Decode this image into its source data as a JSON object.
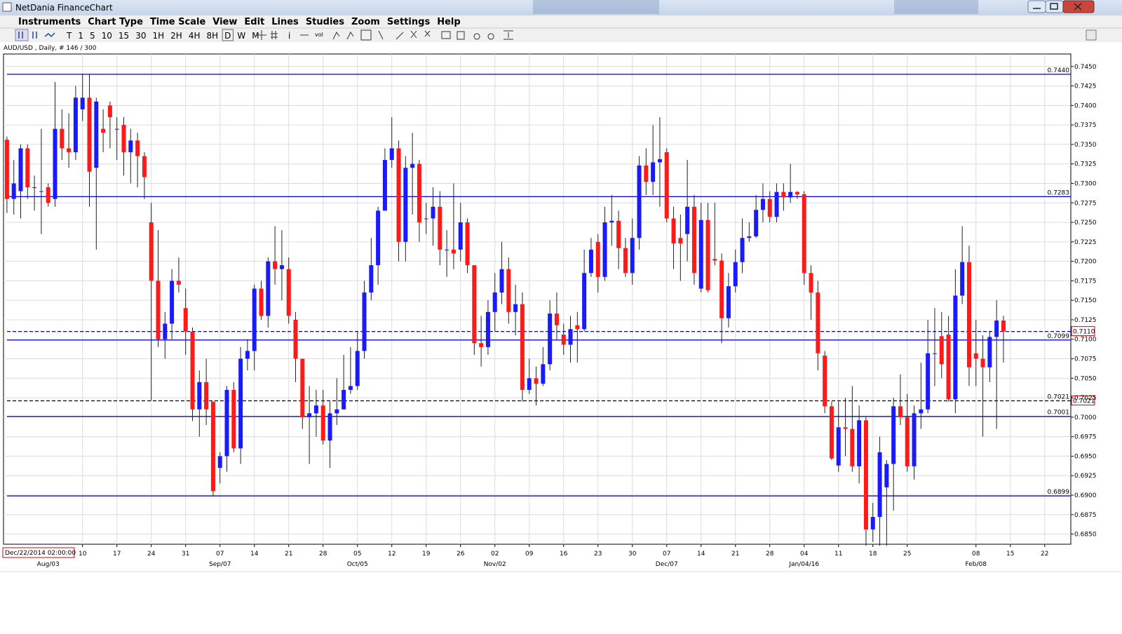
{
  "window": {
    "title": "NetDania FinanceChart"
  },
  "menu": [
    "Instruments",
    "Chart Type",
    "Time Scale",
    "View",
    "Edit",
    "Lines",
    "Studies",
    "Zoom",
    "Settings",
    "Help"
  ],
  "toolbar": {
    "timeframes": [
      "T",
      "1",
      "5",
      "10",
      "15",
      "30",
      "1H",
      "2H",
      "4H",
      "8H",
      "D",
      "W",
      "M"
    ],
    "tools": [
      "i",
      "vol"
    ]
  },
  "chart_data": {
    "type": "candlestick",
    "title": "AUD/USD , Daily, # 146 / 300",
    "start_label": "Dec/22/2014 02:00:00",
    "up_color": "#1a1aff",
    "down_color": "#ff1a1a",
    "wick_color": "#222222",
    "grid": true,
    "xlim": [
      -0.5,
      154.8
    ],
    "ylim": [
      0.6837,
      0.7466
    ],
    "yticks": [
      {
        "value": 0.745,
        "label": "0.7450"
      },
      {
        "value": 0.7425,
        "label": "0.7425"
      },
      {
        "value": 0.74,
        "label": "0.7400"
      },
      {
        "value": 0.7375,
        "label": "0.7375"
      },
      {
        "value": 0.735,
        "label": "0.7350"
      },
      {
        "value": 0.7325,
        "label": "0.7325"
      },
      {
        "value": 0.73,
        "label": "0.7300"
      },
      {
        "value": 0.7275,
        "label": "0.7275"
      },
      {
        "value": 0.725,
        "label": "0.7250"
      },
      {
        "value": 0.7225,
        "label": "0.7225"
      },
      {
        "value": 0.72,
        "label": "0.7200"
      },
      {
        "value": 0.7175,
        "label": "0.7175"
      },
      {
        "value": 0.715,
        "label": "0.7150"
      },
      {
        "value": 0.7125,
        "label": "0.7125"
      },
      {
        "value": 0.71,
        "label": "0.7100"
      },
      {
        "value": 0.7075,
        "label": "0.7075"
      },
      {
        "value": 0.705,
        "label": "0.7050"
      },
      {
        "value": 0.7025,
        "label": "0.7025"
      },
      {
        "value": 0.7,
        "label": "0.7000"
      },
      {
        "value": 0.6975,
        "label": "0.6975"
      },
      {
        "value": 0.695,
        "label": "0.6950"
      },
      {
        "value": 0.6925,
        "label": "0.6925"
      },
      {
        "value": 0.69,
        "label": "0.6900"
      },
      {
        "value": 0.6875,
        "label": "0.6875"
      },
      {
        "value": 0.685,
        "label": "0.6850"
      }
    ],
    "xticks": [
      {
        "value": 11,
        "label": "10"
      },
      {
        "value": 16,
        "label": "17"
      },
      {
        "value": 21,
        "label": "24"
      },
      {
        "value": 26,
        "label": "31"
      },
      {
        "value": 31,
        "label": "07"
      },
      {
        "value": 36,
        "label": "14"
      },
      {
        "value": 41,
        "label": "21"
      },
      {
        "value": 46,
        "label": "28"
      },
      {
        "value": 51,
        "label": "05"
      },
      {
        "value": 56,
        "label": "12"
      },
      {
        "value": 61,
        "label": "19"
      },
      {
        "value": 66,
        "label": "26"
      },
      {
        "value": 71,
        "label": "02"
      },
      {
        "value": 76,
        "label": "09"
      },
      {
        "value": 81,
        "label": "16"
      },
      {
        "value": 86,
        "label": "23"
      },
      {
        "value": 91,
        "label": "30"
      },
      {
        "value": 96,
        "label": "07"
      },
      {
        "value": 101,
        "label": "14"
      },
      {
        "value": 106,
        "label": "21"
      },
      {
        "value": 111,
        "label": "28"
      },
      {
        "value": 116,
        "label": "04"
      },
      {
        "value": 121,
        "label": "11"
      },
      {
        "value": 126,
        "label": "18"
      },
      {
        "value": 131,
        "label": "25"
      },
      {
        "value": 141,
        "label": "08"
      },
      {
        "value": 146,
        "label": "15"
      },
      {
        "value": 151,
        "label": "22"
      }
    ],
    "month_ticks": [
      {
        "value": 6,
        "label": "Aug/03"
      },
      {
        "value": 31,
        "label": "Sep/07"
      },
      {
        "value": 51,
        "label": "Oct/05"
      },
      {
        "value": 71,
        "label": "Nov/02"
      },
      {
        "value": 96,
        "label": "Dec/07"
      },
      {
        "value": 116,
        "label": "Jan/04/16"
      },
      {
        "value": 141,
        "label": "Feb/08"
      }
    ],
    "levels": [
      {
        "value": 0.744,
        "label": "0.7440",
        "color": "#0000cc",
        "dashed": false,
        "boxed": false
      },
      {
        "value": 0.7283,
        "label": "0.7283",
        "color": "#0000cc",
        "dashed": false,
        "boxed": false
      },
      {
        "value": 0.7099,
        "label": "0.7099",
        "color": "#0000cc",
        "dashed": false,
        "boxed": false
      },
      {
        "value": 0.7001,
        "label": "0.7001",
        "color": "#0000cc",
        "dashed": false,
        "boxed": false
      },
      {
        "value": 0.6899,
        "label": "0.6899",
        "color": "#0000cc",
        "dashed": false,
        "boxed": false
      },
      {
        "value": 0.711,
        "label": "0.7110",
        "color": "#0000ff",
        "dashed": true,
        "boxed": true
      },
      {
        "value": 0.7021,
        "label": "0.7021",
        "color": "#000000",
        "dashed": true,
        "boxed": true
      }
    ],
    "candles": [
      [
        0.7356,
        0.736,
        0.7262,
        0.728
      ],
      [
        0.728,
        0.733,
        0.726,
        0.73
      ],
      [
        0.729,
        0.735,
        0.7255,
        0.7345
      ],
      [
        0.7345,
        0.735,
        0.728,
        0.7295
      ],
      [
        0.7295,
        0.731,
        0.7265,
        0.7295
      ],
      [
        0.729,
        0.737,
        0.7235,
        0.729
      ],
      [
        0.7295,
        0.73,
        0.727,
        0.7275
      ],
      [
        0.728,
        0.743,
        0.727,
        0.737
      ],
      [
        0.737,
        0.7395,
        0.733,
        0.7345
      ],
      [
        0.7345,
        0.739,
        0.732,
        0.734
      ],
      [
        0.734,
        0.7425,
        0.733,
        0.741
      ],
      [
        0.7395,
        0.744,
        0.738,
        0.741
      ],
      [
        0.741,
        0.744,
        0.727,
        0.7315
      ],
      [
        0.732,
        0.741,
        0.7215,
        0.7405
      ],
      [
        0.737,
        0.7395,
        0.734,
        0.7365
      ],
      [
        0.74,
        0.7405,
        0.7345,
        0.7385
      ],
      [
        0.737,
        0.7385,
        0.733,
        0.737
      ],
      [
        0.7375,
        0.7385,
        0.731,
        0.734
      ],
      [
        0.734,
        0.737,
        0.73,
        0.7355
      ],
      [
        0.7355,
        0.7365,
        0.7295,
        0.7335
      ],
      [
        0.7335,
        0.734,
        0.728,
        0.7308
      ],
      [
        0.725,
        0.7275,
        0.7021,
        0.7175
      ],
      [
        0.7175,
        0.724,
        0.709,
        0.71
      ],
      [
        0.71,
        0.7135,
        0.7075,
        0.712
      ],
      [
        0.712,
        0.719,
        0.71,
        0.7175
      ],
      [
        0.7175,
        0.7205,
        0.716,
        0.717
      ],
      [
        0.714,
        0.7165,
        0.708,
        0.711
      ],
      [
        0.711,
        0.7115,
        0.6995,
        0.701
      ],
      [
        0.701,
        0.706,
        0.6975,
        0.7045
      ],
      [
        0.7045,
        0.7075,
        0.699,
        0.701
      ],
      [
        0.702,
        0.702,
        0.6898,
        0.6905
      ],
      [
        0.6935,
        0.6955,
        0.6915,
        0.695
      ],
      [
        0.695,
        0.704,
        0.693,
        0.7035
      ],
      [
        0.7035,
        0.7045,
        0.6955,
        0.696
      ],
      [
        0.696,
        0.709,
        0.694,
        0.7075
      ],
      [
        0.7075,
        0.71,
        0.706,
        0.7085
      ],
      [
        0.7085,
        0.717,
        0.706,
        0.7165
      ],
      [
        0.7165,
        0.7175,
        0.7125,
        0.713
      ],
      [
        0.713,
        0.7205,
        0.7115,
        0.72
      ],
      [
        0.72,
        0.7245,
        0.717,
        0.719
      ],
      [
        0.719,
        0.724,
        0.715,
        0.7195
      ],
      [
        0.719,
        0.7205,
        0.712,
        0.713
      ],
      [
        0.7125,
        0.7135,
        0.7045,
        0.7075
      ],
      [
        0.7075,
        0.7075,
        0.6985,
        0.7
      ],
      [
        0.7,
        0.704,
        0.694,
        0.7005
      ],
      [
        0.7005,
        0.7035,
        0.6975,
        0.7015
      ],
      [
        0.7015,
        0.7035,
        0.6965,
        0.697
      ],
      [
        0.697,
        0.702,
        0.6935,
        0.7005
      ],
      [
        0.7005,
        0.705,
        0.699,
        0.701
      ],
      [
        0.701,
        0.708,
        0.701,
        0.7035
      ],
      [
        0.7035,
        0.709,
        0.703,
        0.704
      ],
      [
        0.704,
        0.711,
        0.7035,
        0.7085
      ],
      [
        0.7085,
        0.7175,
        0.7075,
        0.716
      ],
      [
        0.716,
        0.723,
        0.715,
        0.7195
      ],
      [
        0.7195,
        0.727,
        0.717,
        0.7265
      ],
      [
        0.7265,
        0.7345,
        0.7265,
        0.733
      ],
      [
        0.733,
        0.7385,
        0.732,
        0.7345
      ],
      [
        0.7345,
        0.7355,
        0.72,
        0.7225
      ],
      [
        0.7225,
        0.7335,
        0.72,
        0.732
      ],
      [
        0.732,
        0.7365,
        0.726,
        0.7325
      ],
      [
        0.7325,
        0.733,
        0.7225,
        0.725
      ],
      [
        0.7255,
        0.7275,
        0.7235,
        0.7255
      ],
      [
        0.7255,
        0.7295,
        0.722,
        0.727
      ],
      [
        0.727,
        0.729,
        0.7195,
        0.7215
      ],
      [
        0.7215,
        0.724,
        0.718,
        0.7215
      ],
      [
        0.7215,
        0.73,
        0.719,
        0.721
      ],
      [
        0.7215,
        0.7275,
        0.72,
        0.725
      ],
      [
        0.725,
        0.7255,
        0.7185,
        0.7195
      ],
      [
        0.7195,
        0.7195,
        0.708,
        0.7095
      ],
      [
        0.7095,
        0.713,
        0.7065,
        0.709
      ],
      [
        0.709,
        0.715,
        0.708,
        0.7135
      ],
      [
        0.7135,
        0.7185,
        0.711,
        0.716
      ],
      [
        0.716,
        0.7225,
        0.7145,
        0.719
      ],
      [
        0.719,
        0.7205,
        0.712,
        0.7135
      ],
      [
        0.7135,
        0.717,
        0.7105,
        0.7145
      ],
      [
        0.7145,
        0.716,
        0.702,
        0.7035
      ],
      [
        0.7035,
        0.7075,
        0.703,
        0.705
      ],
      [
        0.705,
        0.7065,
        0.7015,
        0.7043
      ],
      [
        0.7043,
        0.709,
        0.704,
        0.7068
      ],
      [
        0.7068,
        0.715,
        0.706,
        0.7133
      ],
      [
        0.7133,
        0.716,
        0.71,
        0.7118
      ],
      [
        0.7106,
        0.712,
        0.708,
        0.7093
      ],
      [
        0.7093,
        0.713,
        0.707,
        0.7113
      ],
      [
        0.7118,
        0.7135,
        0.707,
        0.7113
      ],
      [
        0.7113,
        0.7215,
        0.711,
        0.7185
      ],
      [
        0.7185,
        0.723,
        0.718,
        0.7215
      ],
      [
        0.7225,
        0.7235,
        0.716,
        0.718
      ],
      [
        0.718,
        0.727,
        0.7175,
        0.725
      ],
      [
        0.725,
        0.7285,
        0.722,
        0.7252
      ],
      [
        0.7252,
        0.7265,
        0.719,
        0.7217
      ],
      [
        0.7217,
        0.723,
        0.718,
        0.7185
      ],
      [
        0.7185,
        0.7255,
        0.717,
        0.723
      ],
      [
        0.723,
        0.7335,
        0.7215,
        0.7323
      ],
      [
        0.7323,
        0.7345,
        0.7285,
        0.7302
      ],
      [
        0.7302,
        0.7375,
        0.7285,
        0.7327
      ],
      [
        0.7327,
        0.7385,
        0.727,
        0.7331
      ],
      [
        0.734,
        0.7345,
        0.725,
        0.7255
      ],
      [
        0.7255,
        0.727,
        0.719,
        0.7223
      ],
      [
        0.723,
        0.726,
        0.7175,
        0.7223
      ],
      [
        0.7235,
        0.733,
        0.72,
        0.727
      ],
      [
        0.727,
        0.7285,
        0.717,
        0.7185
      ],
      [
        0.7165,
        0.7275,
        0.716,
        0.7253
      ],
      [
        0.7253,
        0.7275,
        0.716,
        0.7163
      ],
      [
        0.7203,
        0.7275,
        0.7195,
        0.7201
      ],
      [
        0.7201,
        0.721,
        0.7095,
        0.7127
      ],
      [
        0.7127,
        0.7185,
        0.7115,
        0.7168
      ],
      [
        0.7168,
        0.7215,
        0.716,
        0.7199
      ],
      [
        0.7199,
        0.7255,
        0.7185,
        0.723
      ],
      [
        0.723,
        0.725,
        0.7225,
        0.7232
      ],
      [
        0.7232,
        0.7285,
        0.723,
        0.7266
      ],
      [
        0.7266,
        0.73,
        0.725,
        0.728
      ],
      [
        0.728,
        0.729,
        0.725,
        0.7257
      ],
      [
        0.7257,
        0.73,
        0.725,
        0.7289
      ],
      [
        0.7289,
        0.73,
        0.7265,
        0.7282
      ],
      [
        0.7282,
        0.7325,
        0.7275,
        0.7289
      ],
      [
        0.7289,
        0.729,
        0.728,
        0.7286
      ],
      [
        0.7286,
        0.729,
        0.717,
        0.7185
      ],
      [
        0.7185,
        0.7195,
        0.7125,
        0.716
      ],
      [
        0.716,
        0.7175,
        0.706,
        0.7082
      ],
      [
        0.7079,
        0.7085,
        0.7005,
        0.7014
      ],
      [
        0.7014,
        0.702,
        0.6945,
        0.6947
      ],
      [
        0.6938,
        0.702,
        0.693,
        0.6987
      ],
      [
        0.6987,
        0.7025,
        0.695,
        0.6985
      ],
      [
        0.6985,
        0.704,
        0.693,
        0.6937
      ],
      [
        0.6937,
        0.7015,
        0.6915,
        0.6996
      ],
      [
        0.6996,
        0.7,
        0.6835,
        0.6856
      ],
      [
        0.6856,
        0.689,
        0.684,
        0.6872
      ],
      [
        0.6872,
        0.6975,
        0.6835,
        0.6955
      ],
      [
        0.691,
        0.6945,
        0.6835,
        0.694
      ],
      [
        0.694,
        0.7025,
        0.688,
        0.7014
      ],
      [
        0.7014,
        0.7055,
        0.699,
        0.7
      ],
      [
        0.7,
        0.703,
        0.693,
        0.6937
      ],
      [
        0.6937,
        0.7015,
        0.692,
        0.7005
      ],
      [
        0.7005,
        0.707,
        0.6985,
        0.701
      ],
      [
        0.701,
        0.7125,
        0.7005,
        0.7082
      ],
      [
        0.7082,
        0.714,
        0.704,
        0.7082
      ],
      [
        0.7104,
        0.7135,
        0.705,
        0.7068
      ],
      [
        0.7106,
        0.713,
        0.702,
        0.7023
      ],
      [
        0.7023,
        0.719,
        0.7005,
        0.7156
      ],
      [
        0.7156,
        0.7245,
        0.7145,
        0.7199
      ],
      [
        0.7199,
        0.722,
        0.704,
        0.7064
      ],
      [
        0.7082,
        0.7125,
        0.704,
        0.7075
      ],
      [
        0.7075,
        0.7105,
        0.6975,
        0.7064
      ],
      [
        0.7064,
        0.711,
        0.7045,
        0.7103
      ],
      [
        0.7103,
        0.715,
        0.6985,
        0.7124
      ],
      [
        0.7124,
        0.713,
        0.707,
        0.711
      ]
    ]
  }
}
